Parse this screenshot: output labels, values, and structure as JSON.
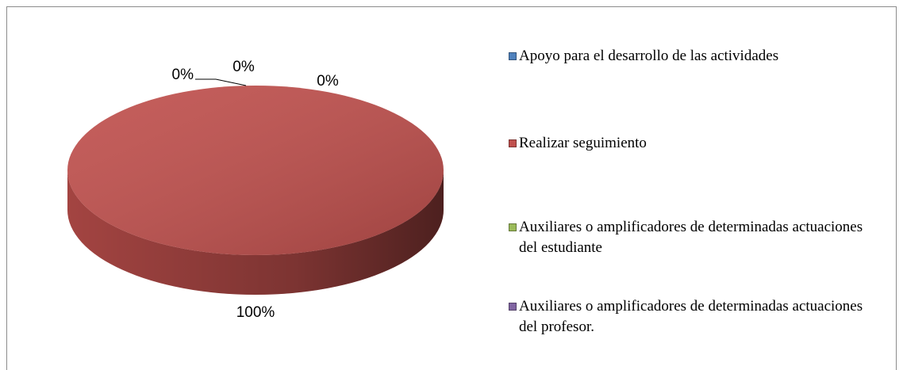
{
  "chart_data": {
    "type": "pie",
    "categories": [
      "Apoyo para el desarrollo de las actividades",
      "Realizar seguimiento",
      "Auxiliares o amplificadores de determinadas actuaciones del estudiante",
      "Auxiliares o amplificadores de determinadas actuaciones del profesor."
    ],
    "values": [
      0,
      100,
      0,
      0
    ],
    "value_labels": [
      "0%",
      "100%",
      "0%",
      "0%"
    ],
    "colors": [
      "#4f81bd",
      "#c0504d",
      "#9bbb59",
      "#8064a2"
    ],
    "legend": "right"
  }
}
